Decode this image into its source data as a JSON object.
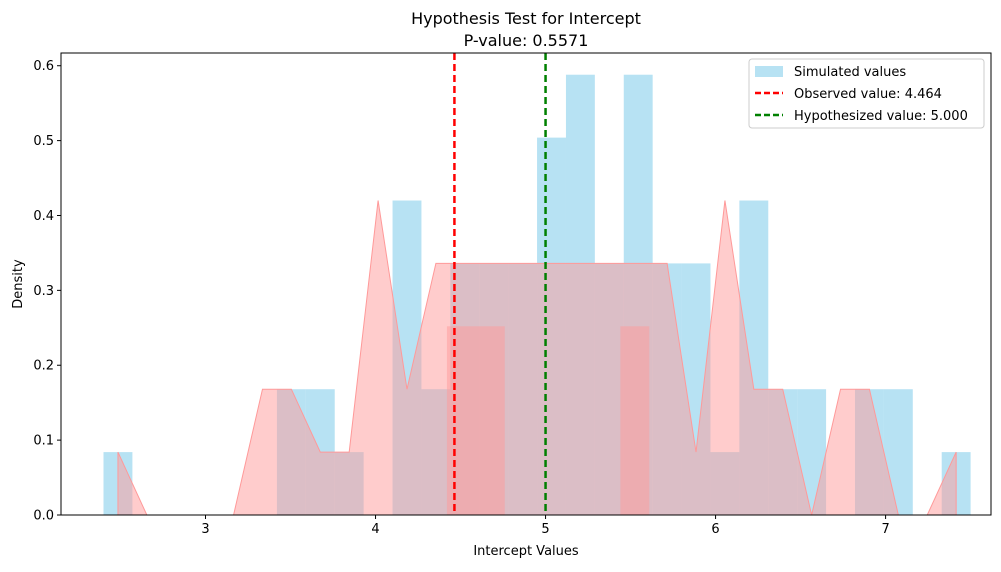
{
  "chart_data": {
    "type": "bar",
    "title": "Hypothesis Test for Intercept",
    "subtitle": "P-value: 0.5571",
    "xlabel": "Intercept Values",
    "ylabel": "Density",
    "xlim": [
      2.15,
      7.62
    ],
    "ylim": [
      0,
      0.617
    ],
    "x_ticks": [
      3,
      4,
      5,
      6,
      7
    ],
    "y_ticks": [
      0.0,
      0.1,
      0.2,
      0.3,
      0.4,
      0.5,
      0.6
    ],
    "grid": false,
    "legend_position": "top-right",
    "histogram": {
      "name": "Simulated values",
      "color": "#87CEEB",
      "bin_start": 2.4,
      "bin_width": 0.17,
      "values": [
        0.084,
        0,
        0,
        0,
        0,
        0,
        0.168,
        0.168,
        0.084,
        0,
        0.42,
        0.168,
        0.336,
        0.336,
        0.336,
        0.504,
        0.588,
        0.336,
        0.588,
        0.336,
        0.336,
        0.084,
        0.42,
        0.168,
        0.168,
        0,
        0.168,
        0.168,
        0,
        0.084
      ]
    },
    "density_outline": {
      "color": "#FF9999",
      "points": [
        [
          2.485,
          0.084
        ],
        [
          2.655,
          0
        ],
        [
          3.165,
          0
        ],
        [
          3.335,
          0.168
        ],
        [
          3.505,
          0.168
        ],
        [
          3.675,
          0.084
        ],
        [
          3.845,
          0.084
        ],
        [
          4.015,
          0.42
        ],
        [
          4.185,
          0.168
        ],
        [
          4.355,
          0.336
        ],
        [
          4.525,
          0.336
        ],
        [
          4.695,
          0.336
        ],
        [
          4.865,
          0.336
        ],
        [
          5.035,
          0.336
        ],
        [
          5.205,
          0.336
        ],
        [
          5.375,
          0.336
        ],
        [
          5.545,
          0.336
        ],
        [
          5.715,
          0.336
        ],
        [
          5.885,
          0.084
        ],
        [
          6.055,
          0.42
        ],
        [
          6.225,
          0.168
        ],
        [
          6.395,
          0.168
        ],
        [
          6.565,
          0
        ],
        [
          6.735,
          0.168
        ],
        [
          6.905,
          0.168
        ],
        [
          7.075,
          0
        ],
        [
          7.245,
          0
        ],
        [
          7.415,
          0.084
        ]
      ]
    },
    "overlay_blocks": {
      "color": "#FF9999",
      "items": [
        {
          "x0": 4.42,
          "x1": 4.76,
          "y": 0.252
        },
        {
          "x0": 5.44,
          "x1": 5.61,
          "y": 0.252
        }
      ]
    },
    "vlines": [
      {
        "name": "Observed value: 4.464",
        "x": 4.464,
        "color": "#FF0000"
      },
      {
        "name": "Hypothesized value: 5.000",
        "x": 5.0,
        "color": "#008000"
      }
    ]
  }
}
